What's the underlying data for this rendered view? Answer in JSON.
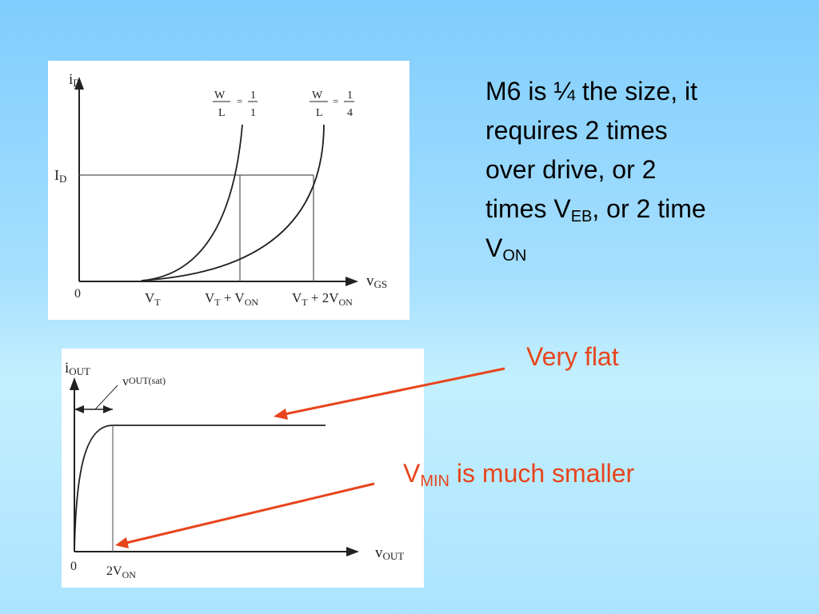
{
  "top_graph": {
    "y_axis_label": {
      "main": "i",
      "sub": "D"
    },
    "x_axis_label": {
      "main": "v",
      "sub": "GS"
    },
    "level_label": {
      "main": "I",
      "sub": "D"
    },
    "origin": "0",
    "curve1_ratio": {
      "w": "W",
      "l": "L",
      "eq": "=",
      "num": "1",
      "den": "1"
    },
    "curve2_ratio": {
      "w": "W",
      "l": "L",
      "eq": "=",
      "num": "1",
      "den": "4"
    },
    "tick_vt": {
      "main": "V",
      "sub": "T"
    },
    "tick_vt_von": {
      "a": "V",
      "a_sub": "T",
      "mid": " + V",
      "b_sub": "ON"
    },
    "tick_vt_2von": {
      "a": "V",
      "a_sub": "T",
      "mid": " + 2V",
      "b_sub": "ON"
    }
  },
  "bottom_graph": {
    "y_axis_label": {
      "main": "i",
      "sub": "OUT"
    },
    "x_axis_label": {
      "main": "v",
      "sub": "OUT"
    },
    "sat_label": {
      "main": "v",
      "sub": "OUT(sat)"
    },
    "origin": "0",
    "tick": {
      "main": "2V",
      "sub": "ON"
    }
  },
  "text": {
    "line1": "M6 is ¼ the size, it",
    "line2": "requires 2 times",
    "line3": "over drive, or 2",
    "line4_pre": "times V",
    "line4_sub": "EB",
    "line4_post": ", or 2 time",
    "line5_pre": "V",
    "line5_sub": "ON"
  },
  "callouts": {
    "flat": "Very flat",
    "vmin_pre": "V",
    "vmin_sub": "MIN",
    "vmin_post": " is much smaller",
    "color": "#e8441c"
  }
}
